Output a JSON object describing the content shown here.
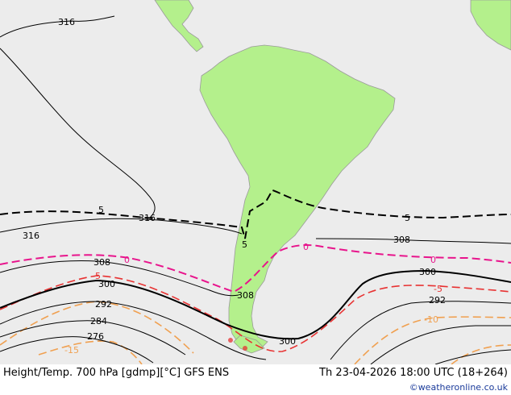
{
  "map": {
    "title": "Height/Temp. 700 hPa [gdmp][°C] GFS ENS",
    "valid_time": "Th 23-04-2026 18:00 UTC (18+264)",
    "credit": "©weatheronline.co.uk",
    "colors": {
      "sea": "#ececec",
      "land": "#b4f08c",
      "coast": "#9a9a9a",
      "height_contour": "#000000",
      "temp_0": "#e8148c",
      "temp_minus5": "#e83232",
      "temp_minus10": "#f0a050",
      "temp_minus15": "#f0a050"
    },
    "height_labels": [
      "316",
      "316",
      "316",
      "308",
      "308",
      "308",
      "300",
      "300",
      "300",
      "292",
      "292",
      "284",
      "276"
    ],
    "temp_labels": [
      "5",
      "5",
      "5",
      "0",
      "0",
      "0",
      "-5",
      "-5",
      "-10",
      "-15"
    ]
  }
}
